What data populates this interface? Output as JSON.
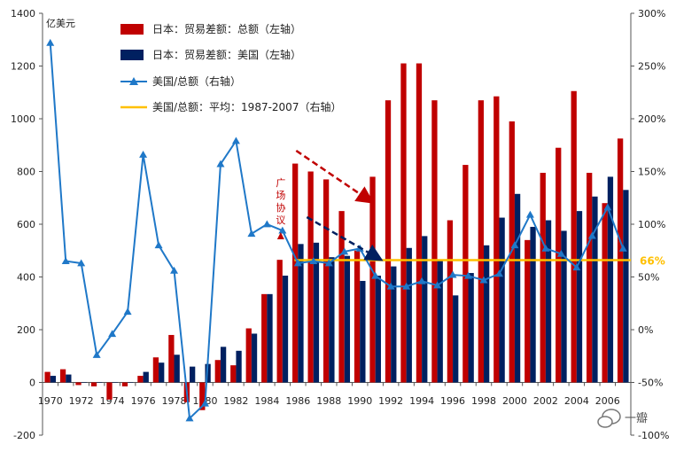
{
  "chart_data": {
    "type": "bar",
    "unit_label": "亿美元",
    "legend": [
      {
        "label": "日本：贸易差额：总额（左轴）",
        "kind": "bar",
        "color": "#C00000"
      },
      {
        "label": "日本：贸易差额：美国（左轴）",
        "kind": "bar",
        "color": "#002060"
      },
      {
        "label": "美国/总额（右轴）",
        "kind": "line-marker",
        "color": "#1F78C8"
      },
      {
        "label": "美国/总额：平均：1987-2007（右轴）",
        "kind": "line",
        "color": "#FFC000"
      }
    ],
    "x": [
      1970,
      1971,
      1972,
      1973,
      1974,
      1975,
      1976,
      1977,
      1978,
      1979,
      1980,
      1981,
      1982,
      1983,
      1984,
      1985,
      1986,
      1987,
      1988,
      1989,
      1990,
      1991,
      1992,
      1993,
      1994,
      1995,
      1996,
      1997,
      1998,
      1999,
      2000,
      2001,
      2002,
      2003,
      2004,
      2005,
      2006,
      2007
    ],
    "x_tick_labels": [
      "1970",
      "1972",
      "1974",
      "1976",
      "1978",
      "1980",
      "1982",
      "1984",
      "1986",
      "1988",
      "1990",
      "1992",
      "1994",
      "1996",
      "1998",
      "2000",
      "2002",
      "2004",
      "2006"
    ],
    "series": [
      {
        "name": "日本：贸易差额：总额（左轴）",
        "axis": "left",
        "values": [
          40,
          50,
          -10,
          -15,
          -65,
          -15,
          25,
          95,
          180,
          -75,
          -105,
          85,
          65,
          205,
          335,
          465,
          830,
          800,
          770,
          650,
          500,
          780,
          1070,
          1210,
          1210,
          1070,
          615,
          825,
          1070,
          1085,
          990,
          540,
          795,
          890,
          1105,
          795,
          680,
          925
        ]
      },
      {
        "name": "日本：贸易差额：美国（左轴）",
        "axis": "left",
        "values": [
          25,
          30,
          0,
          0,
          0,
          0,
          40,
          75,
          105,
          60,
          70,
          135,
          120,
          185,
          335,
          405,
          525,
          530,
          475,
          480,
          385,
          405,
          440,
          510,
          555,
          465,
          330,
          415,
          520,
          625,
          715,
          590,
          615,
          575,
          650,
          705,
          780,
          730
        ]
      },
      {
        "name": "美国/总额（右轴）",
        "axis": "right",
        "values": [
          272,
          65,
          63,
          -24,
          -4,
          17,
          166,
          80,
          56,
          -84,
          -70,
          157,
          179,
          91,
          100,
          94,
          63,
          65,
          63,
          74,
          77,
          51,
          41,
          41,
          46,
          42,
          52,
          51,
          47,
          53,
          80,
          109,
          77,
          72,
          59,
          89,
          116,
          77
        ]
      },
      {
        "name": "美国/总额：平均：1987-2007（右轴）",
        "axis": "right",
        "constant": 66
      }
    ],
    "left_axis": {
      "min": -200,
      "max": 1400,
      "ticks": [
        "-200",
        "0",
        "200",
        "400",
        "600",
        "800",
        "1000",
        "1200",
        "1400"
      ]
    },
    "right_axis": {
      "min": -100,
      "max": 300,
      "ticks": [
        "-100%",
        "-50%",
        "0%",
        "50%",
        "100%",
        "150%",
        "200%",
        "250%",
        "300%"
      ]
    },
    "annotations": {
      "plaza_accord": "广场协议",
      "avg_label": "66%",
      "watermark": "一瓣"
    }
  }
}
